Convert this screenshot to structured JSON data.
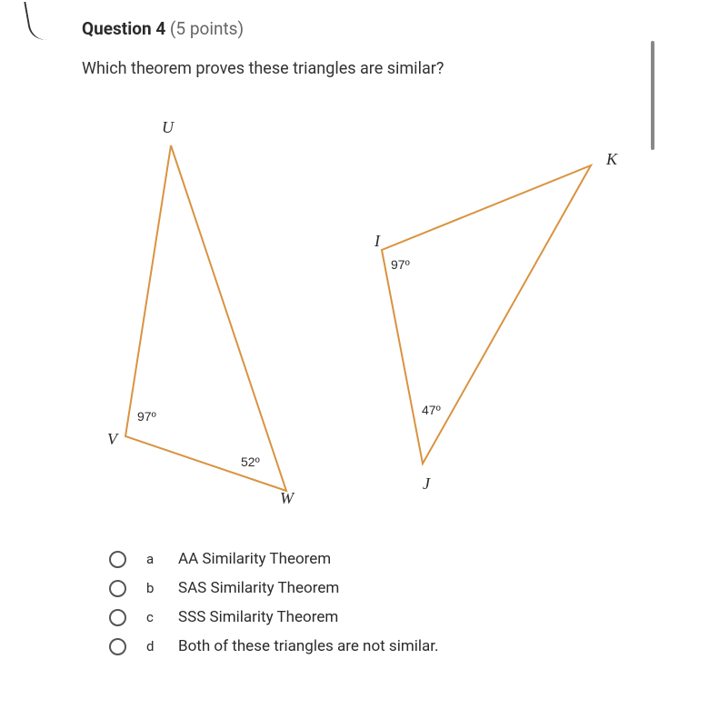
{
  "header": {
    "title": "Question 4",
    "points": " (5 points)"
  },
  "question": "Which theorem proves these triangles are similar?",
  "triangle1": {
    "label_U": "U",
    "label_V": "V",
    "label_W": "W",
    "angle_V": "97º",
    "angle_W": "52º",
    "vertices": {
      "U": [
        98,
        50
      ],
      "V": [
        48,
        370
      ],
      "W": [
        225,
        430
      ]
    },
    "stroke": "#d99340",
    "stroke_width": 2
  },
  "triangle2": {
    "label_I": "I",
    "label_J": "J",
    "label_K": "K",
    "angle_I": "97º",
    "angle_J": "47º",
    "vertices": {
      "I": [
        330,
        165
      ],
      "J": [
        375,
        400
      ],
      "K": [
        560,
        72
      ]
    },
    "stroke": "#d99340",
    "stroke_width": 2
  },
  "options": [
    {
      "letter": "a",
      "text": "AA Similarity Theorem"
    },
    {
      "letter": "b",
      "text": "SAS Similarity Theorem"
    },
    {
      "letter": "c",
      "text": "SSS Similarity Theorem"
    },
    {
      "letter": "d",
      "text": "Both of these triangles are not similar."
    }
  ]
}
